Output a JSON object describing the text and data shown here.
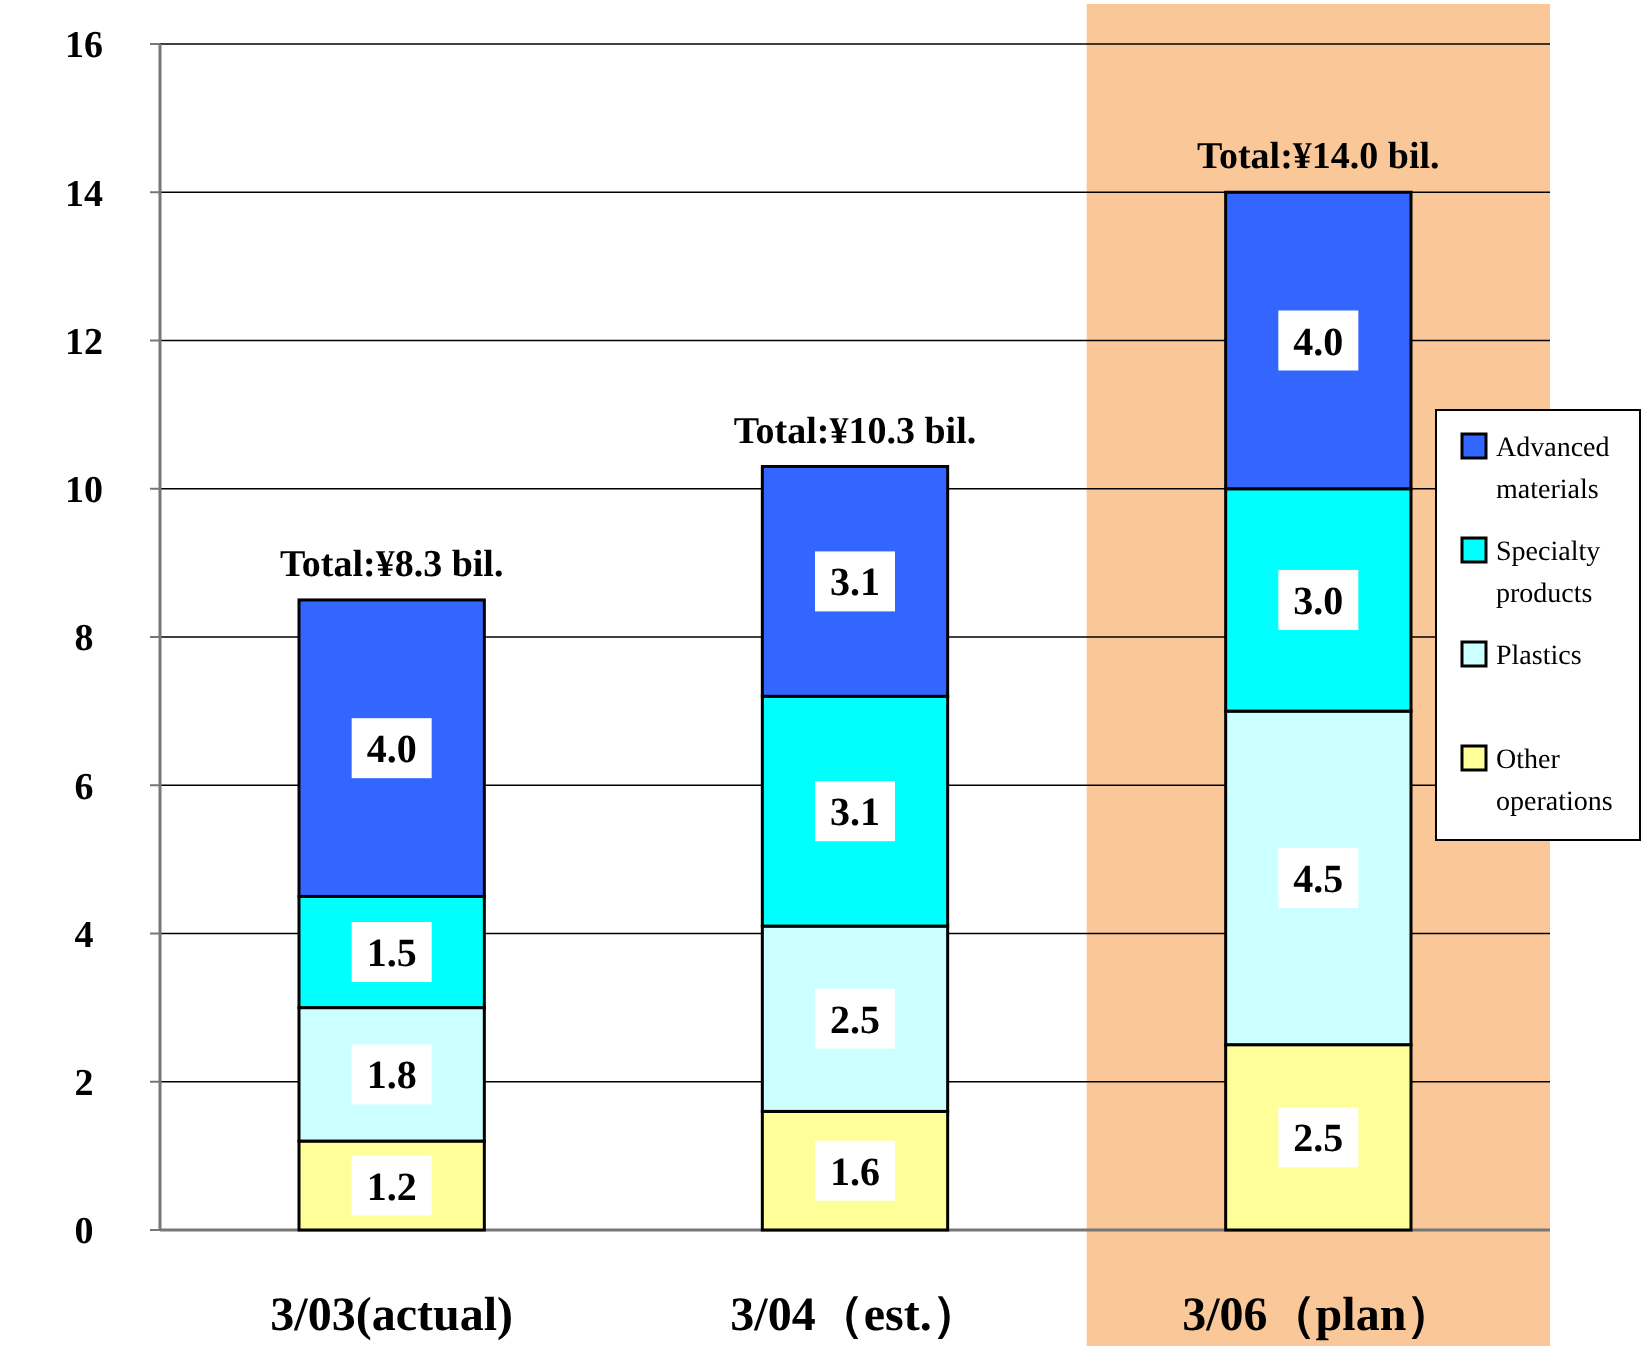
{
  "chart_data": {
    "type": "bar",
    "stacked": true,
    "categories": [
      "3/03(actual)",
      "3/04（est.）",
      "3/06（plan）"
    ],
    "series": [
      {
        "name": "Other operations",
        "color": "#ffff99",
        "values": [
          1.2,
          1.6,
          2.5
        ],
        "value_labels": [
          "1.2",
          "1.6",
          "2.5"
        ]
      },
      {
        "name": "Plastics",
        "color": "#ccffff",
        "values": [
          1.8,
          2.5,
          4.5
        ],
        "value_labels": [
          "1.8",
          "2.5",
          "4.5"
        ]
      },
      {
        "name": "Specialty products",
        "color": "#00ffff",
        "values": [
          1.5,
          3.1,
          3.0
        ],
        "value_labels": [
          "1.5",
          "3.1",
          "3.0"
        ]
      },
      {
        "name": "Advanced materials",
        "color": "#3366ff",
        "values": [
          4.0,
          3.1,
          4.0
        ],
        "value_labels": [
          "4.0",
          "3.1",
          "4.0"
        ]
      }
    ],
    "totals": [
      "Total:¥8.3 bil.",
      "Total:¥10.3 bil.",
      "Total:¥14.0 bil."
    ],
    "bands": [
      {
        "axis": "x",
        "from": "3/06（plan）",
        "to": "3/06（plan）",
        "color": "#fac898"
      }
    ],
    "ylim": [
      0,
      16
    ],
    "yticks": [
      0,
      2,
      4,
      6,
      8,
      10,
      12,
      14,
      16
    ],
    "grid": "y",
    "legend": "right"
  }
}
